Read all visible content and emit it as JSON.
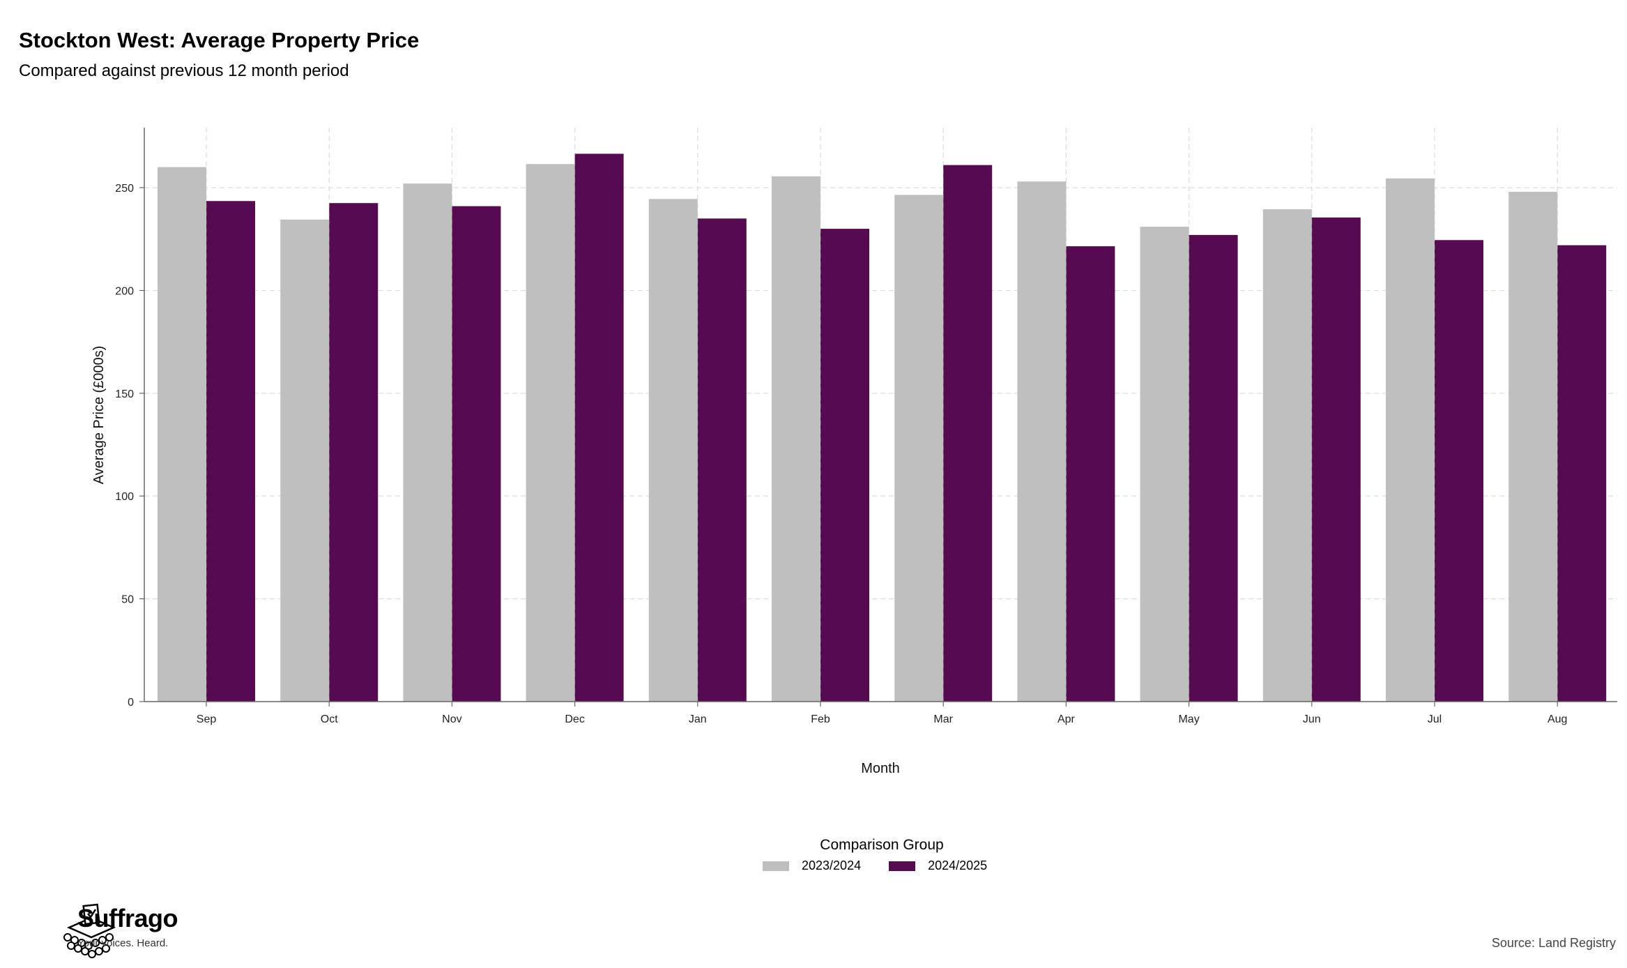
{
  "header": {
    "title": "Stockton West: Average Property Price",
    "subtitle": "Compared against previous 12 month period"
  },
  "chart_data": {
    "type": "bar",
    "categories": [
      "Sep",
      "Oct",
      "Nov",
      "Dec",
      "Jan",
      "Feb",
      "Mar",
      "Apr",
      "May",
      "Jun",
      "Jul",
      "Aug"
    ],
    "series": [
      {
        "name": "2023/2024",
        "color": "#bfbfbf",
        "values": [
          260,
          234.5,
          252,
          261.5,
          244.5,
          255.5,
          246.5,
          253,
          231,
          239.5,
          254.5,
          248
        ]
      },
      {
        "name": "2024/2025",
        "color": "#560b51",
        "values": [
          243.5,
          242.5,
          241,
          266.5,
          235,
          230,
          261,
          221.5,
          227,
          235.5,
          224.5,
          222
        ]
      }
    ],
    "xlabel": "Month",
    "ylabel": "Average Price (£000s)",
    "yticks": [
      0,
      50,
      100,
      150,
      200,
      250
    ],
    "ylim": [
      0,
      280
    ],
    "grid": true,
    "legend": {
      "title": "Comparison Group",
      "position": "bottom"
    }
  },
  "footer": {
    "brand_name": "Suffrago",
    "brand_tagline": "Your voices. Heard.",
    "source": "Source: Land Registry"
  }
}
